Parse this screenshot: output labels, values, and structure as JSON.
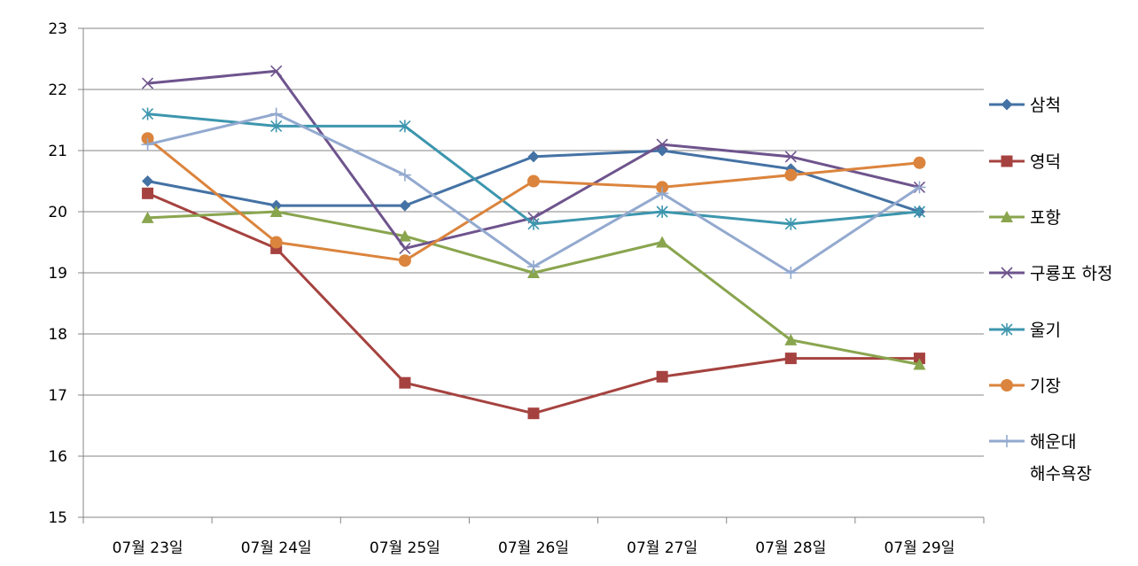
{
  "chart_data": {
    "type": "line",
    "title": "",
    "xlabel": "",
    "ylabel": "",
    "categories": [
      "07월 23일",
      "07월 24일",
      "07월 25일",
      "07월 26일",
      "07월 27일",
      "07월 28일",
      "07월 29일"
    ],
    "ylim": [
      15,
      23
    ],
    "yticks": [
      "15",
      "16",
      "17",
      "18",
      "19",
      "20",
      "21",
      "22",
      "23"
    ],
    "grid": "horizontal",
    "legend_position": "right",
    "series": [
      {
        "name": "삼척",
        "color": "#4472A4",
        "marker": "diamond",
        "values": [
          20.5,
          20.1,
          20.1,
          20.9,
          21.0,
          20.7,
          20.0
        ]
      },
      {
        "name": "영덕",
        "color": "#A5423F",
        "marker": "square",
        "values": [
          20.3,
          19.4,
          17.2,
          16.7,
          17.3,
          17.6,
          17.6
        ]
      },
      {
        "name": "포항",
        "color": "#89A54E",
        "marker": "triangle",
        "values": [
          19.9,
          20.0,
          19.6,
          19.0,
          19.5,
          17.9,
          17.5
        ]
      },
      {
        "name": "구룡포 하정",
        "color": "#6E548D",
        "marker": "x",
        "values": [
          22.1,
          22.3,
          19.4,
          19.9,
          21.1,
          20.9,
          20.4
        ]
      },
      {
        "name": "울기",
        "color": "#3D96AE",
        "marker": "star",
        "values": [
          21.6,
          21.4,
          21.4,
          19.8,
          20.0,
          19.8,
          20.0
        ]
      },
      {
        "name": "기장",
        "color": "#DB843D",
        "marker": "circle",
        "values": [
          21.2,
          19.5,
          19.2,
          20.5,
          20.4,
          20.6,
          20.8
        ]
      },
      {
        "name": "해운대 해수욕장",
        "legend_lines": [
          "해운대",
          "해수욕장"
        ],
        "color": "#93A9CF",
        "marker": "plus",
        "values": [
          21.1,
          21.6,
          20.6,
          19.1,
          20.3,
          19.0,
          20.4
        ]
      }
    ]
  }
}
